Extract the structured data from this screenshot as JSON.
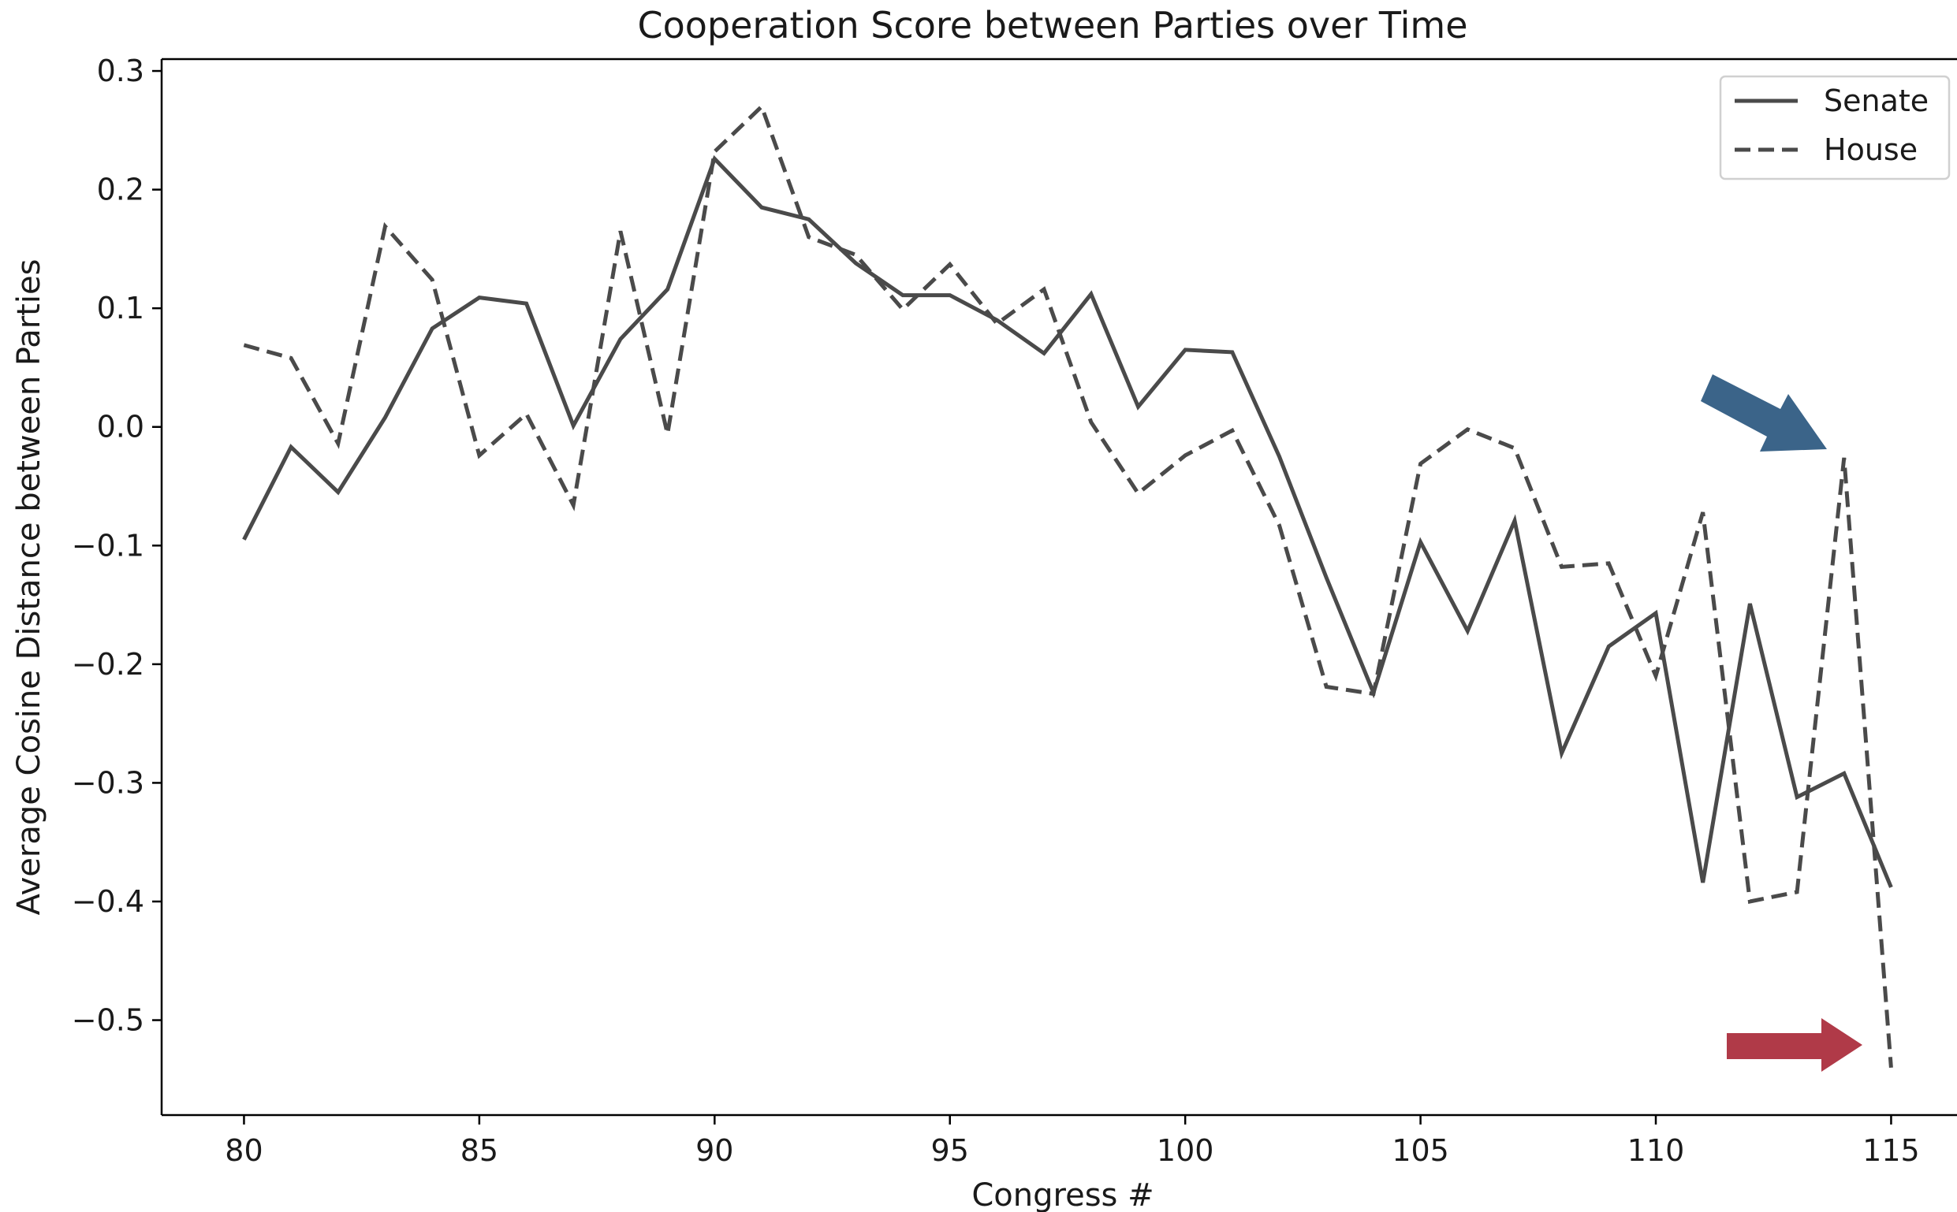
{
  "chart_data": {
    "type": "line",
    "title": "Cooperation Score between Parties over Time",
    "xlabel": "Congress #",
    "ylabel": "Average Cosine Distance between Parties",
    "xlim": [
      78.25,
      116.4
    ],
    "ylim": [
      -0.58,
      0.31
    ],
    "xticks": [
      80,
      85,
      90,
      95,
      100,
      105,
      110,
      115
    ],
    "xtick_labels": [
      "80",
      "85",
      "90",
      "95",
      "100",
      "105",
      "110",
      "115"
    ],
    "yticks": [
      0.3,
      0.2,
      0.1,
      0.0,
      -0.1,
      -0.2,
      -0.3,
      -0.4,
      -0.5
    ],
    "ytick_labels": [
      "0.3",
      "0.2",
      "0.1",
      "0.0",
      "−0.1",
      "−0.2",
      "−0.3",
      "−0.4",
      "−0.5"
    ],
    "grid": false,
    "legend_position": "top-right",
    "x": [
      80,
      81,
      82,
      83,
      84,
      85,
      86,
      87,
      88,
      89,
      90,
      91,
      92,
      93,
      94,
      95,
      96,
      97,
      98,
      99,
      100,
      101,
      102,
      103,
      104,
      105,
      106,
      107,
      108,
      109,
      110,
      111,
      112,
      113,
      114,
      115
    ],
    "series": [
      {
        "name": "Senate",
        "style": "solid",
        "color": "#4a4a4a",
        "values": [
          -0.095,
          -0.017,
          -0.055,
          0.008,
          0.083,
          0.109,
          0.104,
          0.001,
          0.074,
          0.116,
          0.226,
          0.185,
          0.175,
          0.138,
          0.111,
          0.111,
          0.09,
          0.062,
          0.112,
          0.017,
          0.065,
          0.063,
          -0.025,
          -0.127,
          -0.224,
          -0.097,
          -0.172,
          -0.079,
          -0.275,
          -0.185,
          -0.157,
          -0.384,
          -0.149,
          -0.312,
          -0.292,
          -0.388
        ]
      },
      {
        "name": "House",
        "style": "dashed",
        "color": "#4a4a4a",
        "values": [
          0.069,
          0.058,
          -0.014,
          0.169,
          0.124,
          -0.024,
          0.011,
          -0.066,
          0.165,
          -0.006,
          0.232,
          0.27,
          0.16,
          0.145,
          0.099,
          0.137,
          0.087,
          0.116,
          0.004,
          -0.056,
          -0.024,
          -0.003,
          -0.083,
          -0.219,
          -0.225,
          -0.031,
          -0.002,
          -0.018,
          -0.118,
          -0.115,
          -0.21,
          -0.072,
          -0.4,
          -0.392,
          -0.026,
          -0.54
        ]
      }
    ],
    "annotations": [
      {
        "type": "arrow",
        "color": "#3b6489",
        "points_to": {
          "x": 114,
          "y": -0.026
        }
      },
      {
        "type": "arrow",
        "color": "#b03a48",
        "points_to": {
          "x": 114.6,
          "y": -0.52
        }
      }
    ]
  }
}
